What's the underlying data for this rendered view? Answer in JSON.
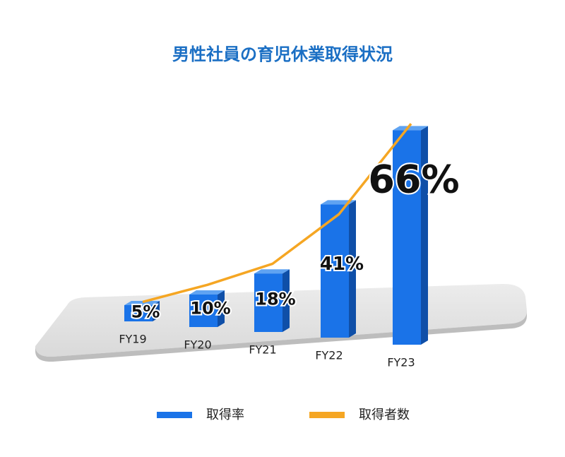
{
  "chart_data": {
    "type": "bar",
    "title": "男性社員の育児休業取得状況",
    "categories": [
      "FY19",
      "FY20",
      "FY21",
      "FY22",
      "FY23"
    ],
    "series": [
      {
        "name": "取得率",
        "color": "#1a73e8",
        "values": [
          5,
          10,
          18,
          41,
          66
        ],
        "value_labels": [
          "5%",
          "10%",
          "18%",
          "41%",
          "66%"
        ]
      },
      {
        "name": "取得者数",
        "type": "line",
        "color": "#f5a623",
        "values": [
          6,
          13,
          21,
          38,
          68
        ]
      }
    ]
  }
}
